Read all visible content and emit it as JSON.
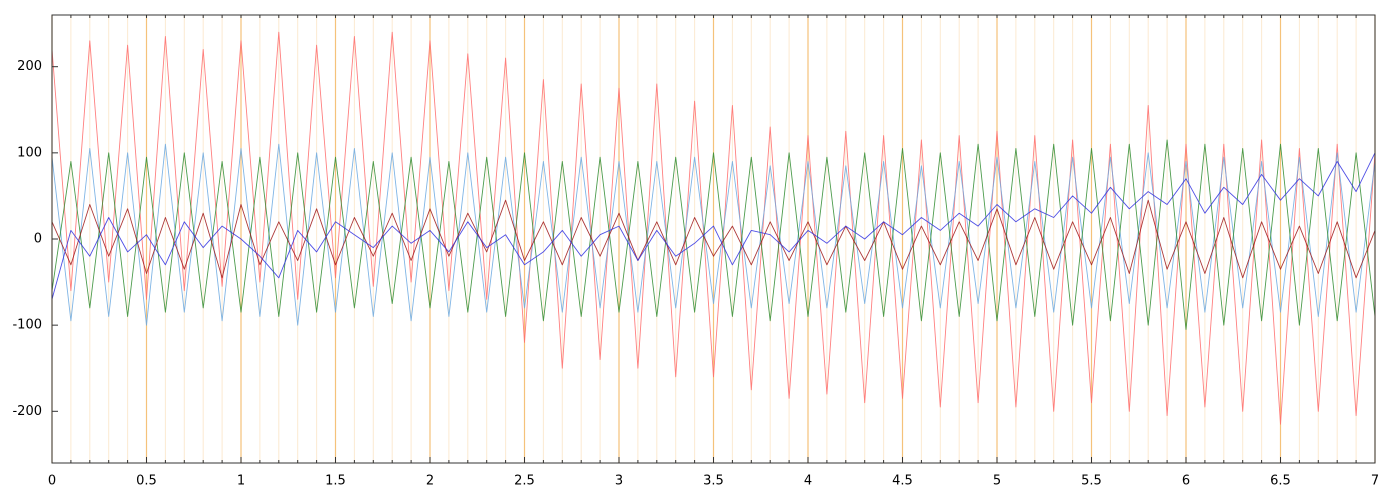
{
  "chart_data": {
    "type": "line",
    "xlim": [
      0,
      7
    ],
    "ylim": [
      -260,
      260
    ],
    "xticks": [
      0,
      0.5,
      1,
      1.5,
      2,
      2.5,
      3,
      3.5,
      4,
      4.5,
      5,
      5.5,
      6,
      6.5,
      7
    ],
    "yticks": [
      -200,
      -100,
      0,
      100,
      200
    ],
    "xminorticks": [
      0,
      0.1,
      0.2,
      0.3,
      0.4,
      0.5,
      0.6,
      0.7,
      0.8,
      0.9,
      1,
      1.1,
      1.2,
      1.3,
      1.4,
      1.5,
      1.6,
      1.7,
      1.8,
      1.9,
      2,
      2.1,
      2.2,
      2.3,
      2.4,
      2.5,
      2.6,
      2.7,
      2.8,
      2.9,
      3,
      3.1,
      3.2,
      3.3,
      3.4,
      3.5,
      3.6,
      3.7,
      3.8,
      3.9,
      4,
      4.1,
      4.2,
      4.3,
      4.4,
      4.5,
      4.6,
      4.7,
      4.8,
      4.9,
      5,
      5.1,
      5.2,
      5.3,
      5.4,
      5.5,
      5.6,
      5.7,
      5.8,
      5.9,
      6,
      6.1,
      6.2,
      6.3,
      6.4,
      6.5,
      6.6,
      6.7,
      6.8,
      6.9,
      7
    ],
    "grid": true,
    "grid_color": "#f5c27a",
    "x": [
      0,
      0.1,
      0.2,
      0.3,
      0.4,
      0.5,
      0.6,
      0.7,
      0.8,
      0.9,
      1,
      1.1,
      1.2,
      1.3,
      1.4,
      1.5,
      1.6,
      1.7,
      1.8,
      1.9,
      2,
      2.1,
      2.2,
      2.3,
      2.4,
      2.5,
      2.6,
      2.7,
      2.8,
      2.9,
      3,
      3.1,
      3.2,
      3.3,
      3.4,
      3.5,
      3.6,
      3.7,
      3.8,
      3.9,
      4,
      4.1,
      4.2,
      4.3,
      4.4,
      4.5,
      4.6,
      4.7,
      4.8,
      4.9,
      5,
      5.1,
      5.2,
      5.3,
      5.4,
      5.5,
      5.6,
      5.7,
      5.8,
      5.9,
      6,
      6.1,
      6.2,
      6.3,
      6.4,
      6.5,
      6.6,
      6.7,
      6.8,
      6.9,
      7
    ],
    "series": [
      {
        "color": "#ff6a6a",
        "values": [
          220,
          -60,
          230,
          -50,
          225,
          -70,
          235,
          -60,
          220,
          -55,
          230,
          -50,
          240,
          -70,
          225,
          -45,
          235,
          -55,
          240,
          -50,
          230,
          -60,
          215,
          -70,
          210,
          -120,
          185,
          -150,
          180,
          -140,
          175,
          -150,
          180,
          -160,
          160,
          -160,
          155,
          -175,
          130,
          -185,
          120,
          -180,
          125,
          -190,
          120,
          -185,
          115,
          -195,
          120,
          -190,
          125,
          -195,
          120,
          -200,
          115,
          -190,
          110,
          -200,
          155,
          -205,
          110,
          -195,
          110,
          -200,
          115,
          -215,
          105,
          -200,
          110,
          -205,
          100
        ]
      },
      {
        "color": "#6aa8e0",
        "values": [
          95,
          -95,
          105,
          -90,
          100,
          -100,
          110,
          -85,
          100,
          -95,
          105,
          -90,
          110,
          -100,
          100,
          -85,
          105,
          -90,
          100,
          -95,
          95,
          -90,
          100,
          -85,
          95,
          -80,
          90,
          -85,
          95,
          -80,
          90,
          -85,
          90,
          -80,
          95,
          -75,
          90,
          -80,
          85,
          -75,
          90,
          -80,
          85,
          -75,
          90,
          -80,
          85,
          -80,
          90,
          -75,
          95,
          -80,
          90,
          -85,
          95,
          -80,
          95,
          -75,
          100,
          -80,
          90,
          -85,
          95,
          -80,
          90,
          -85,
          95,
          -90,
          100,
          -85,
          90
        ]
      },
      {
        "color": "#2e8b2e",
        "values": [
          -60,
          90,
          -80,
          100,
          -90,
          95,
          -85,
          100,
          -80,
          90,
          -85,
          95,
          -90,
          100,
          -85,
          95,
          -80,
          90,
          -75,
          95,
          -80,
          90,
          -85,
          95,
          -90,
          100,
          -95,
          90,
          -90,
          95,
          -85,
          90,
          -90,
          95,
          -85,
          100,
          -90,
          95,
          -95,
          100,
          -90,
          95,
          -85,
          100,
          -90,
          105,
          -95,
          100,
          -90,
          110,
          -95,
          105,
          -90,
          110,
          -100,
          105,
          -95,
          110,
          -100,
          115,
          -105,
          110,
          -100,
          105,
          -95,
          110,
          -100,
          105,
          -95,
          100,
          -90
        ]
      },
      {
        "color": "#a01818",
        "values": [
          20,
          -30,
          40,
          -20,
          35,
          -40,
          25,
          -35,
          30,
          -45,
          40,
          -30,
          20,
          -25,
          35,
          -30,
          25,
          -20,
          30,
          -25,
          35,
          -20,
          30,
          -15,
          45,
          -25,
          20,
          -30,
          25,
          -20,
          30,
          -25,
          20,
          -30,
          25,
          -20,
          15,
          -30,
          20,
          -25,
          20,
          -30,
          15,
          -25,
          20,
          -35,
          15,
          -30,
          20,
          -25,
          35,
          -30,
          25,
          -35,
          20,
          -30,
          25,
          -40,
          45,
          -35,
          20,
          -40,
          25,
          -45,
          20,
          -35,
          15,
          -40,
          20,
          -45,
          10
        ]
      },
      {
        "color": "#3030e0",
        "values": [
          -70,
          10,
          -20,
          25,
          -15,
          5,
          -30,
          20,
          -10,
          15,
          0,
          -20,
          -45,
          10,
          -15,
          20,
          5,
          -10,
          15,
          -5,
          10,
          -15,
          20,
          -10,
          5,
          -30,
          -15,
          10,
          -20,
          5,
          15,
          -25,
          10,
          -20,
          -5,
          15,
          -30,
          10,
          5,
          -15,
          10,
          -5,
          15,
          0,
          20,
          5,
          25,
          10,
          30,
          15,
          40,
          20,
          35,
          25,
          50,
          30,
          60,
          35,
          55,
          40,
          70,
          30,
          60,
          40,
          75,
          45,
          70,
          50,
          90,
          55,
          100
        ]
      }
    ]
  }
}
